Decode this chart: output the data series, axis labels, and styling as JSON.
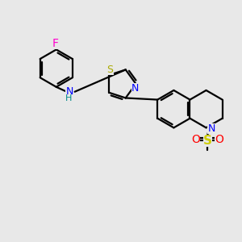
{
  "bg_color": "#e8e8e8",
  "bond_color": "#000000",
  "bond_width": 1.6,
  "atom_colors": {
    "F": "#ff00cc",
    "N": "#0000ff",
    "S_th": "#aaaa00",
    "S_so": "#cccc00",
    "O": "#ff0000",
    "H": "#008888"
  },
  "font_size": 9,
  "figsize": [
    3.0,
    3.0
  ],
  "dpi": 100
}
